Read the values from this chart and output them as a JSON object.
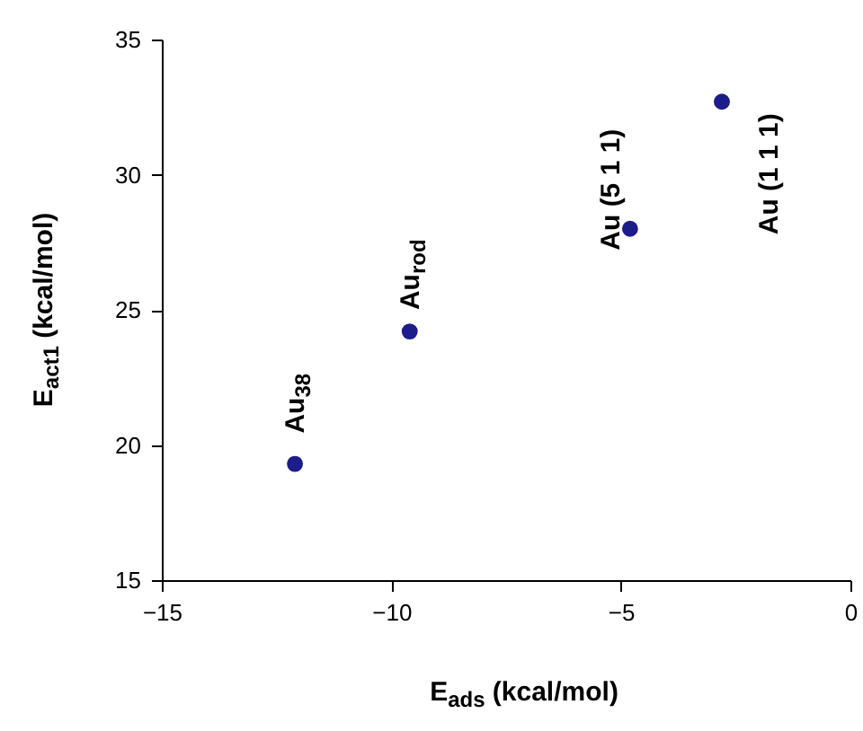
{
  "chart_data": {
    "type": "scatter",
    "xlabel": "E$_{ads}$ (kcal/mol)",
    "ylabel": "E$_{act1}$ (kcal/mol)",
    "x": [
      -12.1,
      -9.6,
      -4.8,
      -2.8
    ],
    "series": [
      {
        "color": "#1c1c8a",
        "values": [
          19.3,
          24.2,
          28.0,
          32.7
        ]
      }
    ],
    "xlim": [
      -15,
      0
    ],
    "xticks": [
      -15,
      -10,
      -5,
      0
    ],
    "ylim": [
      15,
      35
    ],
    "yticks": [
      15,
      20,
      25,
      30,
      35
    ],
    "marker": "circle",
    "annotations": [
      {
        "text": "Au$_{38}$",
        "x": -12.1,
        "y": 19.3
      },
      {
        "text": "Au$_{rod}$",
        "x": -9.6,
        "y": 24.2
      },
      {
        "text": "Au (5 1 1)",
        "x": -4.8,
        "y": 28.0
      },
      {
        "text": "Au (1 1 1)",
        "x": -2.8,
        "y": 32.7
      }
    ]
  }
}
